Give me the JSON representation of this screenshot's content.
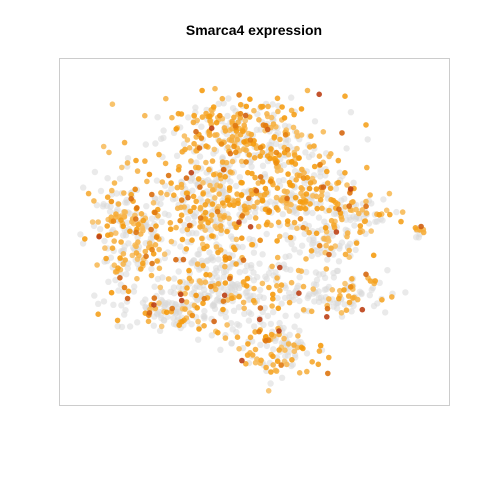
{
  "chart_data": {
    "type": "scatter",
    "title": "Smarca4 expression",
    "xlabel": "",
    "ylabel": "",
    "axes_visible": false,
    "grid": false,
    "legend": "none",
    "color_scale": {
      "low": "#d9d9d9",
      "mid_low": "#f7c26b",
      "mid": "#f59a0c",
      "high": "#a51a1a"
    },
    "xlim": [
      0,
      1
    ],
    "ylim": [
      0,
      1
    ],
    "regions": [
      {
        "cx": 0.46,
        "cy": 0.19,
        "rx": 0.19,
        "ry": 0.1,
        "n": 280,
        "expr_mean": 0.62
      },
      {
        "cx": 0.38,
        "cy": 0.4,
        "rx": 0.2,
        "ry": 0.15,
        "n": 380,
        "expr_mean": 0.55
      },
      {
        "cx": 0.14,
        "cy": 0.5,
        "rx": 0.09,
        "ry": 0.16,
        "n": 200,
        "expr_mean": 0.52
      },
      {
        "cx": 0.62,
        "cy": 0.38,
        "rx": 0.12,
        "ry": 0.14,
        "n": 220,
        "expr_mean": 0.48
      },
      {
        "cx": 0.44,
        "cy": 0.66,
        "rx": 0.24,
        "ry": 0.13,
        "n": 360,
        "expr_mean": 0.28
      },
      {
        "cx": 0.78,
        "cy": 0.44,
        "rx": 0.09,
        "ry": 0.07,
        "n": 90,
        "expr_mean": 0.5
      },
      {
        "cx": 0.76,
        "cy": 0.69,
        "rx": 0.09,
        "ry": 0.06,
        "n": 80,
        "expr_mean": 0.4
      },
      {
        "cx": 0.56,
        "cy": 0.86,
        "rx": 0.11,
        "ry": 0.07,
        "n": 110,
        "expr_mean": 0.58
      },
      {
        "cx": 0.69,
        "cy": 0.54,
        "rx": 0.06,
        "ry": 0.05,
        "n": 50,
        "expr_mean": 0.35
      },
      {
        "cx": 0.95,
        "cy": 0.49,
        "rx": 0.025,
        "ry": 0.02,
        "n": 12,
        "expr_mean": 0.6
      },
      {
        "cx": 0.26,
        "cy": 0.74,
        "rx": 0.1,
        "ry": 0.06,
        "n": 90,
        "expr_mean": 0.3
      }
    ]
  }
}
